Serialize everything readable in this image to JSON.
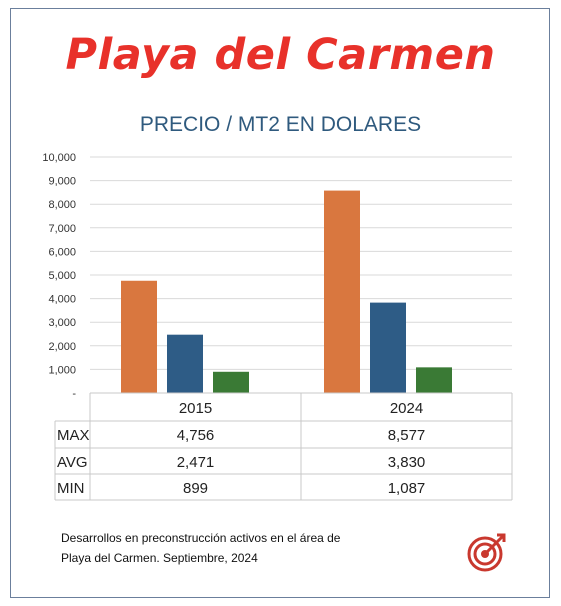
{
  "headline": "Playa del Carmen",
  "footnote": {
    "line1": "Desarrollos en preconstrucción activos en el área de",
    "line2": "Playa del Carmen. Septiembre, 2024"
  },
  "logo_icon": "target-arrow-icon",
  "colors": {
    "max": "#d9773f",
    "avg": "#2e5c86",
    "min": "#3a7a35",
    "headline": "#e8312a",
    "title": "#2f5a7e"
  },
  "chart_data": {
    "type": "bar",
    "title": "PRECIO / MT2 EN DOLARES",
    "categories": [
      "2015",
      "2024"
    ],
    "series": [
      {
        "name": "MAX",
        "values": [
          4756,
          8577
        ],
        "labels": [
          "4,756",
          "8,577"
        ]
      },
      {
        "name": "AVG",
        "values": [
          2471,
          3830
        ],
        "labels": [
          "2,471",
          "3,830"
        ]
      },
      {
        "name": "MIN",
        "values": [
          899,
          1087
        ],
        "labels": [
          "899",
          "1,087"
        ]
      }
    ],
    "yticks": [
      "-",
      "1,000",
      "2,000",
      "3,000",
      "4,000",
      "5,000",
      "6,000",
      "7,000",
      "8,000",
      "9,000",
      "10,000"
    ],
    "ylim": [
      0,
      10000
    ],
    "grid": true,
    "legend": "data-table-below"
  }
}
